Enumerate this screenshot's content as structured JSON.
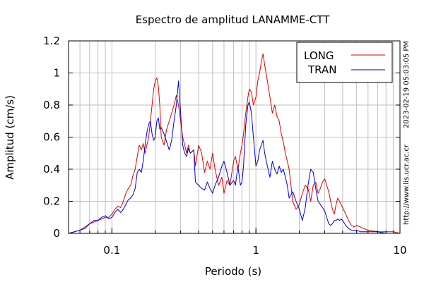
{
  "chart_data": {
    "type": "line",
    "title": "Espectro de amplitud LANAMME-CTT",
    "xlabel": "Periodo (s)",
    "ylabel": "Amplitud (cm/s)",
    "x_scale": "log",
    "xlim": [
      0.05,
      10
    ],
    "ylim": [
      0,
      1.2
    ],
    "x_ticks": [
      {
        "value": 0.1,
        "label": "0.1"
      },
      {
        "value": 1,
        "label": "1"
      },
      {
        "value": 10,
        "label": "10"
      }
    ],
    "y_ticks": [
      {
        "value": 0,
        "label": "0"
      },
      {
        "value": 0.2,
        "label": "0.2"
      },
      {
        "value": 0.4,
        "label": "0.4"
      },
      {
        "value": 0.6,
        "label": "0.6"
      },
      {
        "value": 0.8,
        "label": "0.8"
      },
      {
        "value": 1,
        "label": "1"
      },
      {
        "value": 1.2,
        "label": "1.2"
      }
    ],
    "grid": true,
    "legend_position": "top-right",
    "series": [
      {
        "name": "LONG",
        "color": "#dd0000",
        "points": [
          [
            0.05,
            0.0
          ],
          [
            0.055,
            0.01
          ],
          [
            0.06,
            0.02
          ],
          [
            0.065,
            0.04
          ],
          [
            0.07,
            0.06
          ],
          [
            0.075,
            0.07
          ],
          [
            0.08,
            0.08
          ],
          [
            0.085,
            0.09
          ],
          [
            0.09,
            0.1
          ],
          [
            0.095,
            0.1
          ],
          [
            0.1,
            0.12
          ],
          [
            0.105,
            0.15
          ],
          [
            0.11,
            0.17
          ],
          [
            0.115,
            0.16
          ],
          [
            0.12,
            0.2
          ],
          [
            0.125,
            0.25
          ],
          [
            0.13,
            0.28
          ],
          [
            0.135,
            0.3
          ],
          [
            0.14,
            0.36
          ],
          [
            0.145,
            0.4
          ],
          [
            0.15,
            0.48
          ],
          [
            0.155,
            0.55
          ],
          [
            0.16,
            0.52
          ],
          [
            0.165,
            0.56
          ],
          [
            0.17,
            0.5
          ],
          [
            0.175,
            0.55
          ],
          [
            0.18,
            0.6
          ],
          [
            0.185,
            0.7
          ],
          [
            0.19,
            0.8
          ],
          [
            0.195,
            0.9
          ],
          [
            0.2,
            0.95
          ],
          [
            0.205,
            0.97
          ],
          [
            0.21,
            0.92
          ],
          [
            0.215,
            0.8
          ],
          [
            0.22,
            0.6
          ],
          [
            0.23,
            0.55
          ],
          [
            0.24,
            0.65
          ],
          [
            0.25,
            0.7
          ],
          [
            0.26,
            0.75
          ],
          [
            0.27,
            0.8
          ],
          [
            0.28,
            0.86
          ],
          [
            0.29,
            0.8
          ],
          [
            0.3,
            0.7
          ],
          [
            0.31,
            0.6
          ],
          [
            0.32,
            0.55
          ],
          [
            0.33,
            0.5
          ],
          [
            0.34,
            0.55
          ],
          [
            0.35,
            0.5
          ],
          [
            0.37,
            0.52
          ],
          [
            0.38,
            0.42
          ],
          [
            0.4,
            0.55
          ],
          [
            0.42,
            0.5
          ],
          [
            0.44,
            0.38
          ],
          [
            0.46,
            0.45
          ],
          [
            0.48,
            0.4
          ],
          [
            0.5,
            0.5
          ],
          [
            0.52,
            0.4
          ],
          [
            0.55,
            0.3
          ],
          [
            0.58,
            0.35
          ],
          [
            0.6,
            0.25
          ],
          [
            0.63,
            0.33
          ],
          [
            0.66,
            0.3
          ],
          [
            0.7,
            0.45
          ],
          [
            0.72,
            0.48
          ],
          [
            0.75,
            0.4
          ],
          [
            0.78,
            0.5
          ],
          [
            0.8,
            0.55
          ],
          [
            0.82,
            0.62
          ],
          [
            0.85,
            0.75
          ],
          [
            0.88,
            0.85
          ],
          [
            0.9,
            0.9
          ],
          [
            0.93,
            0.88
          ],
          [
            0.96,
            0.8
          ],
          [
            1.0,
            0.85
          ],
          [
            1.03,
            0.95
          ],
          [
            1.06,
            1.0
          ],
          [
            1.09,
            1.07
          ],
          [
            1.12,
            1.12
          ],
          [
            1.15,
            1.05
          ],
          [
            1.2,
            0.95
          ],
          [
            1.25,
            0.85
          ],
          [
            1.3,
            0.75
          ],
          [
            1.35,
            0.8
          ],
          [
            1.4,
            0.73
          ],
          [
            1.45,
            0.7
          ],
          [
            1.5,
            0.62
          ],
          [
            1.55,
            0.57
          ],
          [
            1.6,
            0.5
          ],
          [
            1.65,
            0.45
          ],
          [
            1.7,
            0.4
          ],
          [
            1.75,
            0.3
          ],
          [
            1.8,
            0.2
          ],
          [
            1.9,
            0.15
          ],
          [
            2.0,
            0.18
          ],
          [
            2.1,
            0.25
          ],
          [
            2.2,
            0.3
          ],
          [
            2.3,
            0.28
          ],
          [
            2.4,
            0.2
          ],
          [
            2.5,
            0.3
          ],
          [
            2.6,
            0.32
          ],
          [
            2.7,
            0.25
          ],
          [
            2.8,
            0.28
          ],
          [
            2.9,
            0.32
          ],
          [
            3.0,
            0.34
          ],
          [
            3.1,
            0.3
          ],
          [
            3.2,
            0.26
          ],
          [
            3.3,
            0.2
          ],
          [
            3.4,
            0.15
          ],
          [
            3.5,
            0.12
          ],
          [
            3.6,
            0.18
          ],
          [
            3.7,
            0.22
          ],
          [
            3.8,
            0.2
          ],
          [
            3.9,
            0.18
          ],
          [
            4.0,
            0.16
          ],
          [
            4.2,
            0.12
          ],
          [
            4.4,
            0.08
          ],
          [
            4.6,
            0.05
          ],
          [
            4.8,
            0.04
          ],
          [
            5.0,
            0.05
          ],
          [
            5.3,
            0.04
          ],
          [
            5.6,
            0.03
          ],
          [
            6.0,
            0.02
          ],
          [
            7.0,
            0.01
          ],
          [
            8.0,
            0.01
          ],
          [
            9.0,
            0.01
          ],
          [
            10.0,
            0.0
          ]
        ]
      },
      {
        "name": "TRAN",
        "color": "#0000cc",
        "points": [
          [
            0.05,
            0.0
          ],
          [
            0.055,
            0.01
          ],
          [
            0.06,
            0.02
          ],
          [
            0.065,
            0.03
          ],
          [
            0.07,
            0.06
          ],
          [
            0.075,
            0.08
          ],
          [
            0.08,
            0.08
          ],
          [
            0.085,
            0.1
          ],
          [
            0.09,
            0.11
          ],
          [
            0.095,
            0.09
          ],
          [
            0.1,
            0.1
          ],
          [
            0.105,
            0.13
          ],
          [
            0.11,
            0.15
          ],
          [
            0.115,
            0.13
          ],
          [
            0.12,
            0.15
          ],
          [
            0.125,
            0.18
          ],
          [
            0.13,
            0.21
          ],
          [
            0.135,
            0.22
          ],
          [
            0.14,
            0.24
          ],
          [
            0.145,
            0.28
          ],
          [
            0.15,
            0.38
          ],
          [
            0.155,
            0.4
          ],
          [
            0.16,
            0.38
          ],
          [
            0.165,
            0.45
          ],
          [
            0.17,
            0.55
          ],
          [
            0.175,
            0.63
          ],
          [
            0.18,
            0.68
          ],
          [
            0.185,
            0.7
          ],
          [
            0.19,
            0.62
          ],
          [
            0.195,
            0.58
          ],
          [
            0.2,
            0.6
          ],
          [
            0.205,
            0.7
          ],
          [
            0.21,
            0.72
          ],
          [
            0.215,
            0.65
          ],
          [
            0.22,
            0.66
          ],
          [
            0.23,
            0.62
          ],
          [
            0.24,
            0.57
          ],
          [
            0.25,
            0.52
          ],
          [
            0.26,
            0.58
          ],
          [
            0.27,
            0.7
          ],
          [
            0.28,
            0.8
          ],
          [
            0.29,
            0.95
          ],
          [
            0.3,
            0.75
          ],
          [
            0.31,
            0.55
          ],
          [
            0.32,
            0.5
          ],
          [
            0.33,
            0.48
          ],
          [
            0.34,
            0.53
          ],
          [
            0.35,
            0.5
          ],
          [
            0.37,
            0.52
          ],
          [
            0.38,
            0.32
          ],
          [
            0.4,
            0.3
          ],
          [
            0.42,
            0.28
          ],
          [
            0.44,
            0.27
          ],
          [
            0.46,
            0.32
          ],
          [
            0.48,
            0.28
          ],
          [
            0.5,
            0.25
          ],
          [
            0.52,
            0.3
          ],
          [
            0.55,
            0.35
          ],
          [
            0.58,
            0.42
          ],
          [
            0.6,
            0.45
          ],
          [
            0.63,
            0.38
          ],
          [
            0.66,
            0.3
          ],
          [
            0.7,
            0.33
          ],
          [
            0.72,
            0.3
          ],
          [
            0.75,
            0.42
          ],
          [
            0.78,
            0.3
          ],
          [
            0.8,
            0.32
          ],
          [
            0.82,
            0.42
          ],
          [
            0.85,
            0.68
          ],
          [
            0.88,
            0.8
          ],
          [
            0.9,
            0.82
          ],
          [
            0.93,
            0.75
          ],
          [
            0.96,
            0.6
          ],
          [
            1.0,
            0.42
          ],
          [
            1.03,
            0.45
          ],
          [
            1.06,
            0.52
          ],
          [
            1.09,
            0.55
          ],
          [
            1.12,
            0.58
          ],
          [
            1.15,
            0.5
          ],
          [
            1.2,
            0.42
          ],
          [
            1.25,
            0.35
          ],
          [
            1.3,
            0.45
          ],
          [
            1.35,
            0.4
          ],
          [
            1.4,
            0.37
          ],
          [
            1.45,
            0.42
          ],
          [
            1.5,
            0.38
          ],
          [
            1.55,
            0.4
          ],
          [
            1.6,
            0.35
          ],
          [
            1.65,
            0.3
          ],
          [
            1.7,
            0.22
          ],
          [
            1.75,
            0.24
          ],
          [
            1.8,
            0.26
          ],
          [
            1.9,
            0.2
          ],
          [
            2.0,
            0.15
          ],
          [
            2.1,
            0.08
          ],
          [
            2.2,
            0.16
          ],
          [
            2.3,
            0.3
          ],
          [
            2.4,
            0.4
          ],
          [
            2.5,
            0.38
          ],
          [
            2.6,
            0.28
          ],
          [
            2.7,
            0.2
          ],
          [
            2.8,
            0.18
          ],
          [
            2.9,
            0.16
          ],
          [
            3.0,
            0.14
          ],
          [
            3.1,
            0.1
          ],
          [
            3.2,
            0.06
          ],
          [
            3.3,
            0.05
          ],
          [
            3.4,
            0.06
          ],
          [
            3.5,
            0.08
          ],
          [
            3.6,
            0.08
          ],
          [
            3.7,
            0.09
          ],
          [
            3.8,
            0.08
          ],
          [
            3.9,
            0.09
          ],
          [
            4.0,
            0.08
          ],
          [
            4.2,
            0.05
          ],
          [
            4.4,
            0.03
          ],
          [
            4.6,
            0.02
          ],
          [
            4.8,
            0.02
          ],
          [
            5.0,
            0.02
          ],
          [
            5.3,
            0.01
          ],
          [
            5.6,
            0.01
          ],
          [
            6.0,
            0.01
          ],
          [
            7.0,
            0.01
          ],
          [
            8.0,
            0.0
          ],
          [
            9.0,
            0.0
          ],
          [
            10.0,
            0.0
          ]
        ]
      }
    ]
  },
  "side_labels": {
    "timestamp": "2023-02-19 05:03:05 PM",
    "url": "http://www.lis.ucr.ac.cr"
  }
}
